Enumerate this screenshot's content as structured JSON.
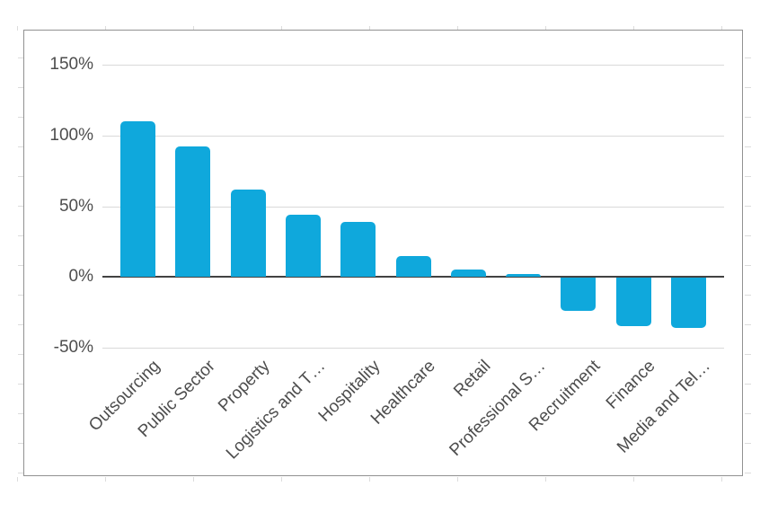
{
  "chart_data": {
    "type": "bar",
    "title": "",
    "xlabel": "",
    "ylabel": "",
    "categories": [
      "Outsourcing",
      "Public Sector",
      "Property",
      "Logistics and T…",
      "Hospitality",
      "Healthcare",
      "Retail",
      "Professional S…",
      "Recruitment",
      "Finance",
      "Media and Tel…"
    ],
    "values": [
      110,
      92,
      62,
      44,
      39,
      15,
      5,
      2,
      -24,
      -35,
      -36
    ],
    "value_suffix": "%",
    "ylim": [
      -50,
      150
    ],
    "yticks": [
      150,
      100,
      50,
      0,
      -50
    ],
    "ytick_labels": [
      "150%",
      "100%",
      "50%",
      "0%",
      "-50%"
    ],
    "grid": true,
    "legend": "none",
    "bar_color": "#0fa8dc"
  },
  "colors": {
    "bar": "#0fa8dc",
    "gridline": "#d9d9d9",
    "zero_axis": "#424242",
    "axis_text": "#4d4d4d",
    "card_border": "#919191",
    "background": "#ffffff"
  }
}
